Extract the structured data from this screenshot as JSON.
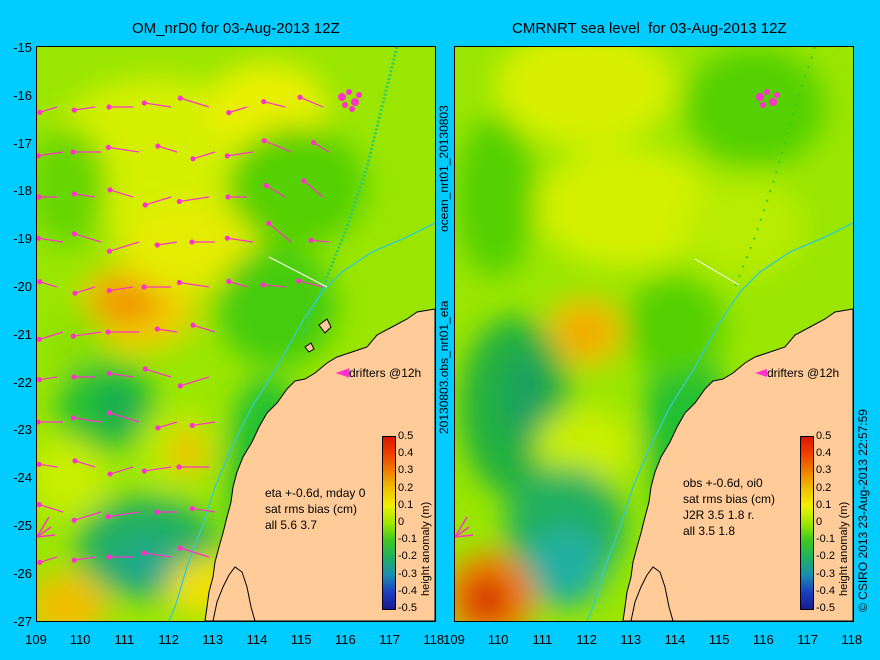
{
  "left_panel": {
    "title": "OM_nrD0 for 03-Aug-2013 12Z",
    "drifters_label": "drifters @12h",
    "stats": [
      "eta +-0.6d, mday 0",
      "sat rms bias (cm)",
      "all  5.6  3.7"
    ],
    "colorbar_label": "height anomaly (m)"
  },
  "right_panel": {
    "title": "CMRNRT sea level  for 03-Aug-2013 12Z",
    "drifters_label": "drifters @12h",
    "stats": [
      "obs +-0.6d, oi0",
      "sat rms bias (cm)",
      "J2R   3.5  1.8  r.",
      "all    3.5  1.8"
    ],
    "colorbar_label": "height anomaly (m)"
  },
  "side_text_1": "ocean_nrt01_20130803",
  "side_text_2": "20130803.obs_nrt01_eta",
  "side_text_3": "© CSIRO 2013   23-Aug-2013 22:57:59",
  "axes": {
    "lat_labels": [
      "-15",
      "-16",
      "-17",
      "-18",
      "-19",
      "-20",
      "-21",
      "-22",
      "-23",
      "-24",
      "-25",
      "-26",
      "-27"
    ],
    "lon_labels": [
      "109",
      "110",
      "111",
      "112",
      "113",
      "114",
      "115",
      "116",
      "117",
      "118"
    ]
  },
  "colorbar_ticks": [
    "0.5",
    "0.4",
    "0.3",
    "0.2",
    "0.1",
    "0",
    "-0.1",
    "-0.2",
    "-0.3",
    "-0.4",
    "-0.5"
  ],
  "colors": {
    "background": "#00ccff",
    "land": "#ffcc99",
    "drifter": "#ff33cc",
    "coast_track": "#33cccc"
  }
}
